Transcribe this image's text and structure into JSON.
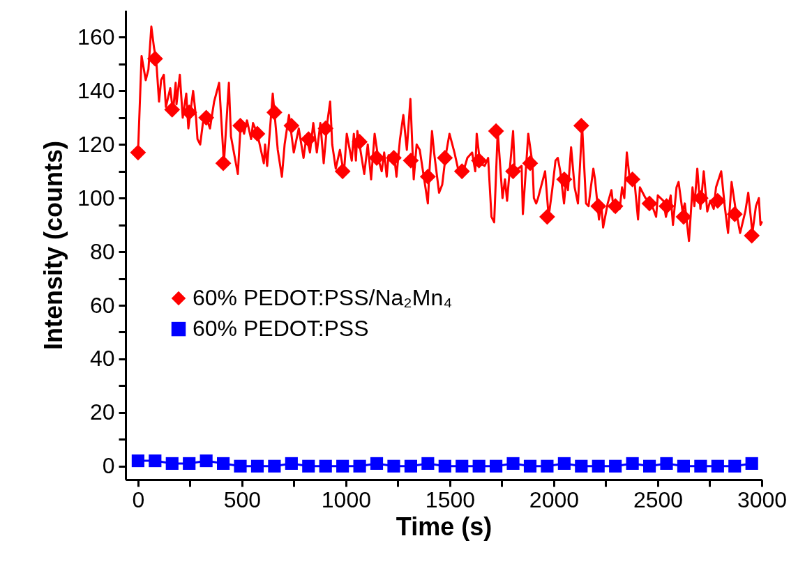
{
  "chart_data": {
    "type": "line",
    "xlabel": "Time (s)",
    "ylabel": "Intensity (counts)",
    "xlim": [
      -60,
      3000
    ],
    "ylim": [
      -5,
      170
    ],
    "xticks": [
      0,
      {
        "value": 250,
        "label": null
      },
      500,
      {
        "value": 750,
        "label": null
      },
      1000,
      {
        "value": 1250,
        "label": null
      },
      1500,
      {
        "value": 1750,
        "label": null
      },
      2000,
      {
        "value": 2250,
        "label": null
      },
      2500,
      {
        "value": 2750,
        "label": null
      },
      3000
    ],
    "yticks": [
      0,
      {
        "value": 10,
        "label": null
      },
      20,
      {
        "value": 30,
        "label": null
      },
      40,
      {
        "value": 50,
        "label": null
      },
      60,
      {
        "value": 70,
        "label": null
      },
      80,
      {
        "value": 90,
        "label": null
      },
      100,
      {
        "value": 110,
        "label": null
      },
      120,
      {
        "value": 130,
        "label": null
      },
      140,
      {
        "value": 150,
        "label": null
      },
      160
    ],
    "legend": "left",
    "series": [
      {
        "type": "line",
        "marker": "none",
        "color": "#ff0000",
        "x": [
          0,
          17,
          37,
          50,
          64,
          77,
          87,
          101,
          111,
          124,
          134,
          155,
          168,
          181,
          185,
          201,
          215,
          232,
          242,
          265,
          279,
          286,
          299,
          312,
          324,
          346,
          366,
          390,
          413,
          437,
          447,
          480,
          494,
          510,
          524,
          544,
          553,
          574,
          605,
          611,
          621,
          648,
          655,
          672,
          692,
          705,
          726,
          749,
          773,
          796,
          810,
          827,
          843,
          860,
          877,
          893,
          910,
          924,
          934,
          951,
          971,
          990,
          1004,
          1028,
          1038,
          1048,
          1055,
          1088,
          1105,
          1121,
          1138,
          1155,
          1172,
          1184,
          1196,
          1205,
          1233,
          1243,
          1260,
          1276,
          1293,
          1310,
          1326,
          1340,
          1355,
          1394,
          1400,
          1414,
          1424,
          1448,
          1463,
          1480,
          1498,
          1522,
          1539,
          1565,
          1584,
          1607,
          1622,
          1629,
          1645,
          1667,
          1684,
          1700,
          1713,
          1730,
          1753,
          1765,
          1775,
          1804,
          1812,
          1845,
          1851,
          1877,
          1897,
          1904,
          1915,
          1924,
          1958,
          1975,
          1992,
          2008,
          2019,
          2031,
          2049,
          2059,
          2068,
          2083,
          2100,
          2116,
          2136,
          2155,
          2167,
          2178,
          2190,
          2198,
          2217,
          2228,
          2237,
          2259,
          2277,
          2289,
          2300,
          2317,
          2328,
          2339,
          2351,
          2365,
          2387,
          2405,
          2414,
          2441,
          2469,
          2492,
          2500,
          2527,
          2539,
          2562,
          2573,
          2590,
          2600,
          2619,
          2630,
          2650,
          2667,
          2676,
          2690,
          2705,
          2721,
          2738,
          2752,
          2769,
          2780,
          2805,
          2822,
          2838,
          2855,
          2872,
          2896,
          2921,
          2935,
          2955,
          2972,
          2986,
          2994,
          3000
        ],
        "values": [
          117,
          153,
          144,
          148,
          164,
          156,
          152,
          136,
          144,
          146,
          134,
          141,
          132,
          143,
          135,
          146,
          130,
          139,
          126,
          140,
          130,
          122,
          120,
          128,
          131,
          126,
          136,
          143,
          113,
          143,
          123,
          109,
          128,
          124,
          129,
          122,
          128,
          124,
          113,
          120,
          112,
          139,
          133,
          118,
          108,
          120,
          131,
          117,
          126,
          115,
          123,
          117,
          128,
          117,
          128,
          113,
          128,
          136,
          120,
          111,
          118,
          109,
          124,
          114,
          124,
          114,
          125,
          109,
          120,
          107,
          124,
          115,
          110,
          117,
          108,
          116,
          115,
          108,
          122,
          131,
          118,
          137,
          107,
          120,
          118,
          98,
          108,
          125,
          117,
          102,
          105,
          116,
          124,
          117,
          111,
          110,
          115,
          117,
          110,
          124,
          113,
          112,
          115,
          93,
          91,
          125,
          100,
          107,
          99,
          125,
          110,
          112,
          94,
          124,
          113,
          100,
          98,
          100,
          110,
          93,
          103,
          114,
          115,
          110,
          98,
          107,
          103,
          119,
          104,
          98,
          127,
          98,
          97,
          104,
          111,
          107,
          92,
          98,
          89,
          98,
          103,
          95,
          98,
          96,
          104,
          100,
          117,
          107,
          107,
          92,
          104,
          100,
          98,
          93,
          101,
          99,
          93,
          101,
          90,
          104,
          106,
          95,
          98,
          84,
          104,
          97,
          111,
          96,
          110,
          95,
          99,
          96,
          104,
          110,
          97,
          87,
          106,
          97,
          87,
          95,
          102,
          87,
          97,
          100,
          90,
          91
        ]
      },
      {
        "type": "scatter",
        "marker": "diamond",
        "name": "60% PEDOT:PSS/Na₂Mn₄",
        "color": "#ff0000",
        "x": [
          0,
          82,
          164,
          246,
          328,
          410,
          492,
          574,
          656,
          738,
          820,
          902,
          984,
          1066,
          1148,
          1230,
          1312,
          1394,
          1476,
          1558,
          1640,
          1722,
          1804,
          1886,
          1968,
          2050,
          2132,
          2214,
          2296,
          2378,
          2460,
          2542,
          2624,
          2706,
          2788,
          2870,
          2952
        ],
        "values": [
          117,
          152,
          133,
          132,
          130,
          113,
          127,
          124,
          132,
          127,
          122,
          126,
          110,
          121,
          115,
          115,
          114,
          108,
          115,
          110,
          114,
          125,
          110,
          113,
          93,
          107,
          127,
          97,
          97,
          107,
          98,
          97,
          93,
          100,
          99,
          94,
          86
        ]
      },
      {
        "type": "line",
        "marker": "square",
        "name": "60% PEDOT:PSS",
        "color": "#0000ff",
        "x": [
          0,
          82,
          164,
          246,
          328,
          410,
          492,
          574,
          656,
          738,
          820,
          902,
          984,
          1066,
          1148,
          1230,
          1312,
          1394,
          1476,
          1558,
          1640,
          1722,
          1804,
          1886,
          1968,
          2050,
          2132,
          2214,
          2296,
          2378,
          2460,
          2542,
          2624,
          2706,
          2788,
          2870,
          2952
        ],
        "values": [
          2,
          2,
          1,
          1,
          2,
          1,
          0,
          0,
          0,
          1,
          0,
          0,
          0,
          0,
          1,
          0,
          0,
          1,
          0,
          0,
          0,
          0,
          1,
          0,
          0,
          1,
          0,
          0,
          0,
          1,
          0,
          1,
          0,
          0,
          0,
          0,
          1
        ]
      }
    ]
  }
}
